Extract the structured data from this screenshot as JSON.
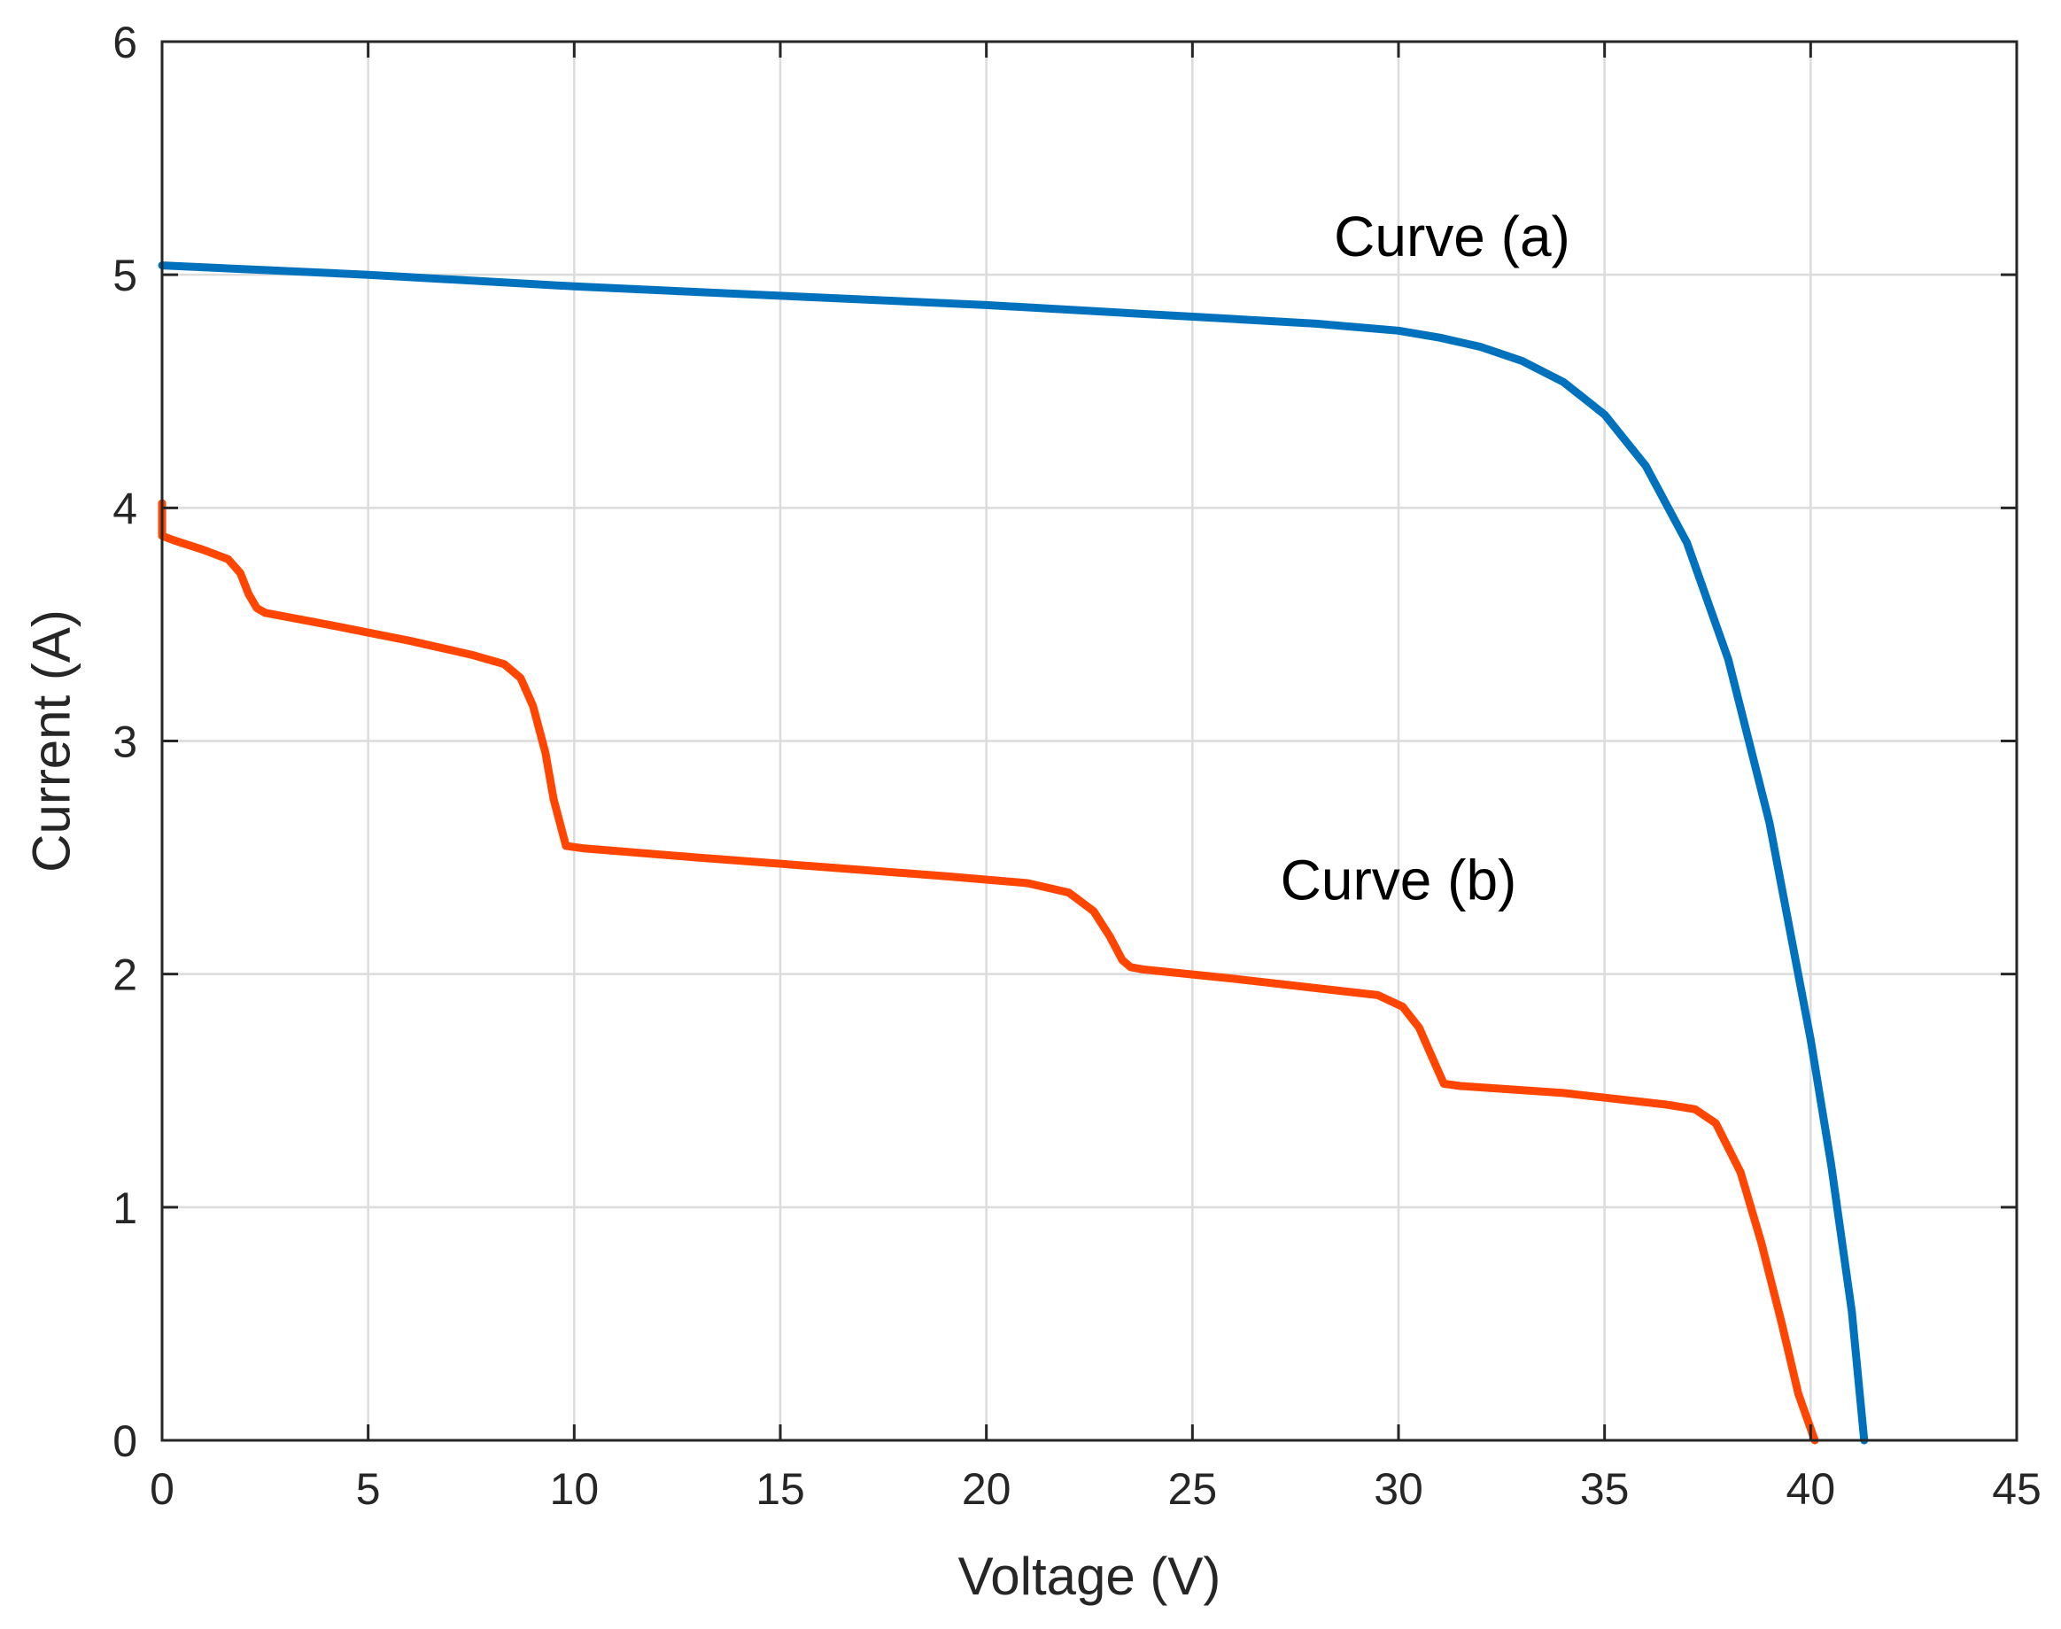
{
  "chart_data": {
    "type": "line",
    "title": "",
    "xlabel": "Voltage (V)",
    "ylabel": "Current (A)",
    "xlim": [
      0,
      45
    ],
    "ylim": [
      0,
      6
    ],
    "xticks": [
      0,
      5,
      10,
      15,
      20,
      25,
      30,
      35,
      40,
      45
    ],
    "yticks": [
      0,
      1,
      2,
      3,
      4,
      5,
      6
    ],
    "grid": true,
    "legend": "none",
    "colors": {
      "series_a": "#0072BD",
      "series_b": "#FF4500"
    },
    "annotations": [
      {
        "text": "Curve (a)",
        "x": 31.3,
        "y": 5.08,
        "series": "Curve (a)"
      },
      {
        "text": "Curve (b)",
        "x": 30.0,
        "y": 2.32,
        "series": "Curve (b)"
      }
    ],
    "series": [
      {
        "name": "Curve (a)",
        "color": "#0072BD",
        "x": [
          0,
          5,
          10,
          15,
          20,
          25,
          28,
          30,
          31,
          32,
          33,
          34,
          35,
          36,
          37,
          38,
          39,
          40,
          40.5,
          41,
          41.3
        ],
        "y": [
          5.04,
          5.0,
          4.95,
          4.91,
          4.87,
          4.82,
          4.79,
          4.76,
          4.73,
          4.69,
          4.63,
          4.54,
          4.4,
          4.18,
          3.85,
          3.35,
          2.65,
          1.72,
          1.18,
          0.55,
          0.0
        ]
      },
      {
        "name": "Curve (b)",
        "color": "#FF4500",
        "x": [
          0,
          0,
          0.3,
          1.0,
          1.6,
          1.9,
          2.1,
          2.3,
          2.5,
          4,
          6,
          7.5,
          8.3,
          8.7,
          9.0,
          9.3,
          9.5,
          9.8,
          10.2,
          13,
          16,
          19,
          21,
          22,
          22.6,
          23.0,
          23.3,
          23.5,
          23.8,
          26,
          29.5,
          30.1,
          30.5,
          30.8,
          31.1,
          31.5,
          34,
          36.5,
          37.2,
          37.7,
          38.3,
          38.8,
          39.3,
          39.7,
          40.1
        ],
        "y": [
          4.02,
          3.88,
          3.86,
          3.82,
          3.78,
          3.72,
          3.63,
          3.57,
          3.55,
          3.5,
          3.43,
          3.37,
          3.33,
          3.27,
          3.15,
          2.95,
          2.75,
          2.55,
          2.54,
          2.5,
          2.46,
          2.42,
          2.39,
          2.35,
          2.27,
          2.16,
          2.06,
          2.03,
          2.02,
          1.98,
          1.91,
          1.86,
          1.77,
          1.65,
          1.53,
          1.52,
          1.49,
          1.44,
          1.42,
          1.36,
          1.15,
          0.85,
          0.5,
          0.2,
          0.0
        ]
      }
    ]
  }
}
